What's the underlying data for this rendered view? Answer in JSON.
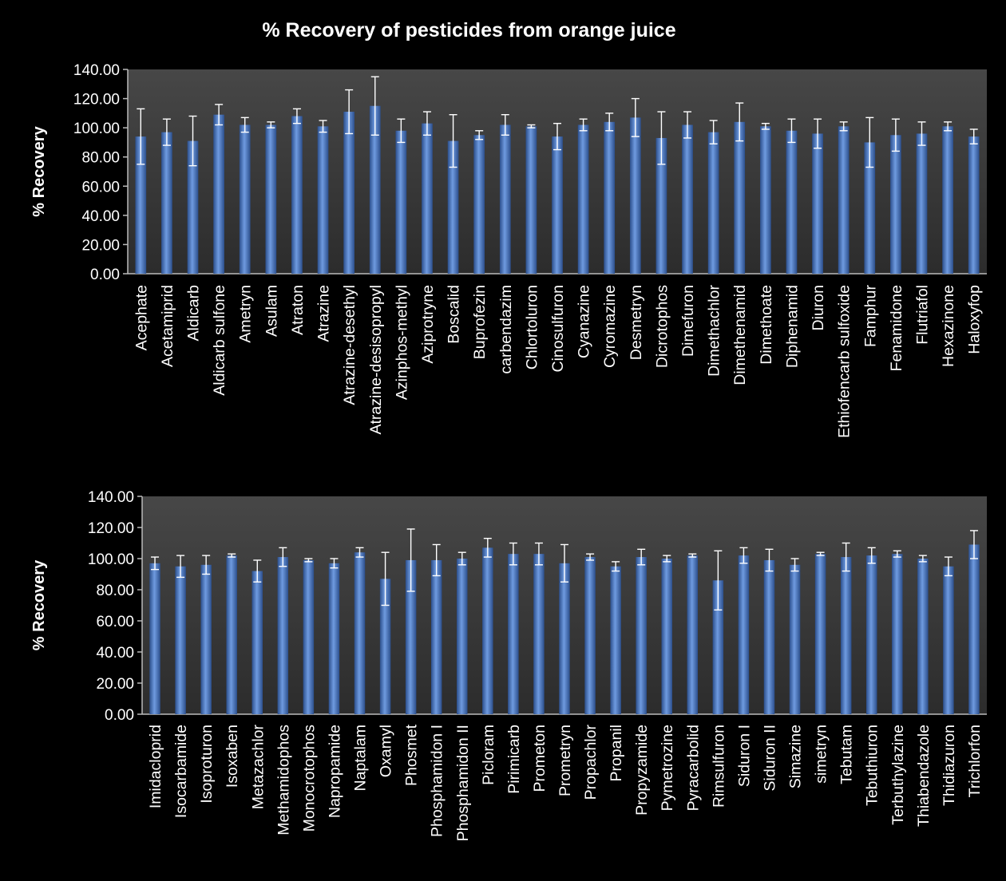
{
  "title": "% Recovery of pesticides from orange juice",
  "colors": {
    "background": "#000000",
    "plot_area": "#3a3a3a",
    "bar": "#3f6cb4",
    "bar_highlight": "#6f9be0",
    "error_bar": "#ffffff"
  },
  "chart_data": [
    {
      "type": "bar",
      "title": "% Recovery of pesticides from orange juice",
      "xlabel": "",
      "ylabel": "% Recovery",
      "ylim": [
        0,
        140
      ],
      "yticks": [
        "0.00",
        "20.00",
        "40.00",
        "60.00",
        "80.00",
        "100.00",
        "120.00",
        "140.00"
      ],
      "grid": false,
      "categories": [
        "Acephate",
        "Acetamiprid",
        "Aldicarb",
        "Aldicarb sulfone",
        "Ametryn",
        "Asulam",
        "Atraton",
        "Atrazine",
        "Atrazine-desethyl",
        "Atrazine-desisopropyl",
        "Azinphos-methyl",
        "Aziprotryne",
        "Boscalid",
        "Buprofezin",
        "carbendazim",
        "Chlortoluron",
        "Cinosulfuron",
        "Cyanazine",
        "Cyromazine",
        "Desmetryn",
        "Dicrotophos",
        "Dimefuron",
        "Dimethachlor",
        "Dimethenamid",
        "Dimethoate",
        "Diphenamid",
        "Diuron",
        "Ethiofencarb sulfoxide",
        "Famphur",
        "Fenamidone",
        "Flutriafol",
        "Hexazinone",
        "Haloxyfop"
      ],
      "values": [
        94,
        97,
        91,
        109,
        102,
        102,
        108,
        101,
        111,
        115,
        98,
        103,
        91,
        95,
        102,
        101,
        94,
        102,
        104,
        107,
        93,
        102,
        97,
        104,
        101,
        98,
        96,
        101,
        90,
        95,
        96,
        101,
        94
      ],
      "errors": [
        19,
        9,
        17,
        7,
        5,
        2,
        5,
        4,
        15,
        20,
        8,
        8,
        18,
        3,
        7,
        1,
        9,
        4,
        6,
        13,
        18,
        9,
        8,
        13,
        2,
        8,
        10,
        3,
        17,
        11,
        8,
        3,
        5
      ]
    },
    {
      "type": "bar",
      "title": "",
      "xlabel": "",
      "ylabel": "% Recovery",
      "ylim": [
        0,
        140
      ],
      "yticks": [
        "0.00",
        "20.00",
        "40.00",
        "60.00",
        "80.00",
        "100.00",
        "120.00",
        "140.00"
      ],
      "grid": false,
      "categories": [
        "Imidacloprid",
        "Isocarbamide",
        "Isoproturon",
        "Isoxaben",
        "Metazachlor",
        "Methamidophos",
        "Monocrotophos",
        "Napropamide",
        "Naptalam",
        "Oxamyl",
        "Phosmet",
        "Phosphamidon I",
        "Phosphamidon II",
        "Picloram",
        "Pirimicarb",
        "Prometon",
        "Prometryn",
        "Propachlor",
        "Propanil",
        "Propyzamide",
        "Pymetrozine",
        "Pyracarbolid",
        "Rimsulfuron",
        "Siduron I",
        "Siduron II",
        "Simazine",
        "simetryn",
        "Tebutam",
        "Tebuthiuron",
        "Terbuthylazine",
        "Thiabendazole",
        "Thidiazuron",
        "Trichlorfon"
      ],
      "values": [
        97,
        95,
        96,
        102,
        92,
        101,
        99,
        97,
        104,
        87,
        99,
        99,
        100,
        107,
        103,
        103,
        97,
        101,
        95,
        101,
        100,
        102,
        86,
        102,
        99,
        96,
        103,
        101,
        102,
        103,
        100,
        95,
        109
      ],
      "errors": [
        4,
        7,
        6,
        1,
        7,
        6,
        1,
        3,
        3,
        17,
        20,
        10,
        4,
        6,
        7,
        7,
        12,
        2,
        3,
        5,
        2,
        1,
        19,
        5,
        7,
        4,
        1,
        9,
        5,
        2,
        2,
        6,
        9
      ]
    }
  ]
}
